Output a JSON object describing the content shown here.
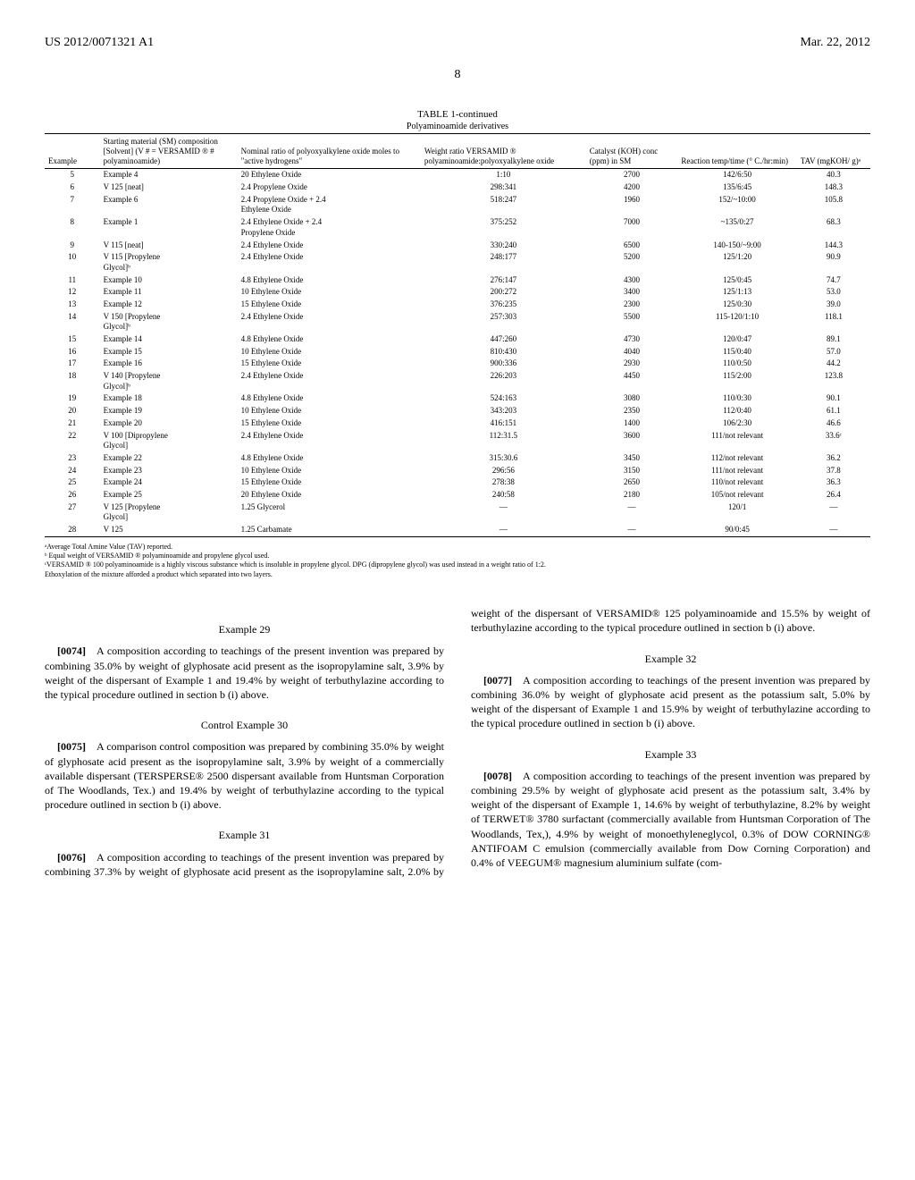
{
  "header": {
    "pub_number": "US 2012/0071321 A1",
    "pub_date": "Mar. 22, 2012"
  },
  "page_num": "8",
  "table": {
    "title": "TABLE 1-continued",
    "subtitle": "Polyaminoamide derivatives",
    "columns": [
      "Example",
      "Starting material\n(SM) composition\n[Solvent]\n(V # = VERSAMID ® #\npolyaminoamide)",
      "Nominal ratio of\npolyoxyalkylene oxide\nmoles to \"active hydrogens\"",
      "Weight ratio VERSAMID ®\npolyaminoamide:polyoxyalkylene\noxide",
      "Catalyst\n(KOH) conc\n(ppm) in SM",
      "Reaction\ntemp/time\n(° C./hr:min)",
      "TAV\n(mgKOH/\ng)ᵃ"
    ],
    "rows": [
      [
        "5",
        "Example 4",
        "20 Ethylene Oxide",
        "1:10",
        "2700",
        "142/6:50",
        "40.3"
      ],
      [
        "6",
        "V 125 [neat]",
        "2.4 Propylene Oxide",
        "298:341",
        "4200",
        "135/6:45",
        "148.3"
      ],
      [
        "7",
        "Example 6",
        "2.4 Propylene Oxide + 2.4\nEthylene Oxide",
        "518:247",
        "1960",
        "152/~10:00",
        "105.8"
      ],
      [
        "8",
        "Example 1",
        "2.4 Ethylene Oxide + 2.4\nPropylene Oxide",
        "375:252",
        "7000",
        "~135/0:27",
        "68.3"
      ],
      [
        "9",
        "V 115 [neat]",
        "2.4 Ethylene Oxide",
        "330:240",
        "6500",
        "140-150/~9:00",
        "144.3"
      ],
      [
        "10",
        "V 115 [Propylene\nGlycol]ᵇ",
        "2.4 Ethylene Oxide",
        "248:177",
        "5200",
        "125/1:20",
        "90.9"
      ],
      [
        "11",
        "Example 10",
        "4.8 Ethylene Oxide",
        "276:147",
        "4300",
        "125/0:45",
        "74.7"
      ],
      [
        "12",
        "Example 11",
        "10 Ethylene Oxide",
        "200:272",
        "3400",
        "125/1:13",
        "53.0"
      ],
      [
        "13",
        "Example 12",
        "15 Ethylene Oxide",
        "376:235",
        "2300",
        "125/0:30",
        "39.0"
      ],
      [
        "14",
        "V 150 [Propylene\nGlycol]ᵇ",
        "2.4 Ethylene Oxide",
        "257:303",
        "5500",
        "115-120/1:10",
        "118.1"
      ],
      [
        "15",
        "Example 14",
        "4.8 Ethylene Oxide",
        "447:260",
        "4730",
        "120/0:47",
        "89.1"
      ],
      [
        "16",
        "Example 15",
        "10 Ethylene Oxide",
        "810:430",
        "4040",
        "115/0:40",
        "57.0"
      ],
      [
        "17",
        "Example 16",
        "15 Ethylene Oxide",
        "900:336",
        "2930",
        "110/0:50",
        "44.2"
      ],
      [
        "18",
        "V 140 [Propylene\nGlycol]ᵇ",
        "2.4 Ethylene Oxide",
        "226:203",
        "4450",
        "115/2:00",
        "123.8"
      ],
      [
        "19",
        "Example 18",
        "4.8 Ethylene Oxide",
        "524:163",
        "3080",
        "110/0:30",
        "90.1"
      ],
      [
        "20",
        "Example 19",
        "10 Ethylene Oxide",
        "343:203",
        "2350",
        "112/0:40",
        "61.1"
      ],
      [
        "21",
        "Example 20",
        "15 Ethylene Oxide",
        "416:151",
        "1400",
        "106/2:30",
        "46.6"
      ],
      [
        "22",
        "V 100 [Dipropylene\nGlycol]",
        "2.4 Ethylene Oxide",
        "112:31.5",
        "3600",
        "111/not relevant",
        "33.6ᶜ"
      ],
      [
        "23",
        "Example 22",
        "4.8 Ethylene Oxide",
        "315:30.6",
        "3450",
        "112/not relevant",
        "36.2"
      ],
      [
        "24",
        "Example 23",
        "10 Ethylene Oxide",
        "296:56",
        "3150",
        "111/not relevant",
        "37.8"
      ],
      [
        "25",
        "Example 24",
        "15 Ethylene Oxide",
        "278:38",
        "2650",
        "110/not relevant",
        "36.3"
      ],
      [
        "26",
        "Example 25",
        "20 Ethylene Oxide",
        "240:58",
        "2180",
        "105/not relevant",
        "26.4"
      ],
      [
        "27",
        "V 125 [Propylene\nGlycol]",
        "1.25 Glycerol",
        "—",
        "—",
        "120/1",
        "—"
      ],
      [
        "28",
        "V 125",
        "1.25 Carbamate",
        "—",
        "—",
        "90/0:45",
        "—"
      ]
    ],
    "footnotes": [
      "ᵃAverage Total Amine Value (TAV) reported.",
      "ᵇ Equal weight of VERSAMID ® polyaminoamide and propylene glycol used.",
      "ᶜVERSAMID ® 100 polyaminoamide is a highly viscous substance which is insoluble in propylene glycol. DPG (dipropylene glycol) was used instead in a weight ratio of 1:2.",
      "Ethoxylation of the mixture afforded a product which separated into two layers."
    ]
  },
  "body": {
    "sections": [
      {
        "heading": "Example 29",
        "para_num": "[0074]",
        "text": "A composition according to teachings of the present invention was prepared by combining 35.0% by weight of glyphosate acid present as the isopropylamine salt, 3.9% by weight of the dispersant of Example 1 and 19.4% by weight of terbuthylazine according to the typical procedure outlined in section b (i) above."
      },
      {
        "heading": "Control Example 30",
        "para_num": "[0075]",
        "text": "A comparison control composition was prepared by combining 35.0% by weight of glyphosate acid present as the isopropylamine salt, 3.9% by weight of a commercially available dispersant (TERSPERSE® 2500 dispersant available from Huntsman Corporation of The Woodlands, Tex.) and 19.4% by weight of terbuthylazine according to the typical procedure outlined in section b (i) above."
      },
      {
        "heading": "Example 31",
        "para_num": "[0076]",
        "text": "A composition according to teachings of the present invention was prepared by combining 37.3% by weight of glyphosate acid present as the isopropylamine salt, 2.0% by weight of the dispersant of VERSAMID® 125 polyaminoamide and 15.5% by weight of terbuthylazine according to the typical procedure outlined in section b (i) above."
      },
      {
        "heading": "Example 32",
        "para_num": "[0077]",
        "text": "A composition according to teachings of the present invention was prepared by combining 36.0% by weight of glyphosate acid present as the potassium salt, 5.0% by weight of the dispersant of Example 1 and 15.9% by weight of terbuthylazine according to the typical procedure outlined in section b (i) above."
      },
      {
        "heading": "Example 33",
        "para_num": "[0078]",
        "text": "A composition according to teachings of the present invention was prepared by combining 29.5% by weight of glyphosate acid present as the potassium salt, 3.4% by weight of the dispersant of Example 1, 14.6% by weight of terbuthylazine, 8.2% by weight of TERWET® 3780 surfactant (commercially available from Huntsman Corporation of The Woodlands, Tex,), 4.9% by weight of monoethyleneglycol, 0.3% of DOW CORNING® ANTIFOAM C emulsion (commercially available from Dow Corning Corporation) and 0.4% of VEEGUM® magnesium aluminium sulfate (com-"
      }
    ]
  }
}
